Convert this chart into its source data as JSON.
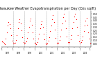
{
  "title": "Milwaukee Weather Evapotranspiration per Day (Ozs sq/ft)",
  "title_fontsize": 3.5,
  "dot_color": "#ff0000",
  "bg_color": "#ffffff",
  "grid_color": "#aaaaaa",
  "ylim": [
    0.0,
    0.55
  ],
  "yticks": [
    0.05,
    0.1,
    0.15,
    0.2,
    0.25,
    0.3,
    0.35,
    0.4,
    0.45,
    0.5
  ],
  "ytick_labels": [
    "0.05",
    "0.10",
    "0.15",
    "0.20",
    "0.25",
    "0.30",
    "0.35",
    "0.40",
    "0.45",
    "0.50"
  ],
  "x_values": [
    0,
    1,
    2,
    3,
    4,
    5,
    6,
    7,
    8,
    9,
    10,
    11,
    12,
    13,
    14,
    15,
    16,
    17,
    18,
    19,
    20,
    21,
    22,
    23,
    24,
    25,
    26,
    27,
    28,
    29,
    30,
    31,
    32,
    33,
    34,
    35,
    36,
    37,
    38,
    39,
    40,
    41,
    42,
    43,
    44,
    45,
    46,
    47,
    48,
    49,
    50,
    51,
    52,
    53,
    54,
    55,
    56,
    57,
    58,
    59,
    60,
    61,
    62,
    63,
    64,
    65,
    66,
    67,
    68,
    69,
    70,
    71,
    72,
    73,
    74,
    75,
    76,
    77,
    78,
    79,
    80,
    81,
    82,
    83,
    84,
    85,
    86,
    87,
    88,
    89,
    90,
    91,
    92,
    93,
    94,
    95
  ],
  "y_values": [
    0.08,
    0.07,
    0.05,
    0.04,
    0.12,
    0.22,
    0.33,
    0.38,
    0.35,
    0.28,
    0.18,
    0.09,
    0.06,
    0.05,
    0.06,
    0.1,
    0.18,
    0.28,
    0.38,
    0.42,
    0.36,
    0.25,
    0.15,
    0.07,
    0.05,
    0.06,
    0.08,
    0.14,
    0.22,
    0.3,
    0.4,
    0.43,
    0.34,
    0.22,
    0.12,
    0.06,
    0.05,
    0.04,
    0.07,
    0.13,
    0.2,
    0.28,
    0.35,
    0.39,
    0.3,
    0.2,
    0.11,
    0.05,
    0.04,
    0.05,
    0.09,
    0.15,
    0.24,
    0.32,
    0.42,
    0.48,
    0.38,
    0.26,
    0.14,
    0.06,
    0.05,
    0.06,
    0.1,
    0.16,
    0.26,
    0.36,
    0.45,
    0.5,
    0.4,
    0.28,
    0.16,
    0.07,
    0.06,
    0.07,
    0.11,
    0.18,
    0.28,
    0.38,
    0.46,
    0.5,
    0.42,
    0.3,
    0.18,
    0.08,
    0.06,
    0.07,
    0.1,
    0.16,
    0.24,
    0.32,
    0.4,
    0.44,
    0.34,
    0.22,
    0.12,
    0.05
  ],
  "vline_positions": [
    12,
    24,
    36,
    48,
    60,
    72,
    84
  ],
  "x_tick_positions": [
    0,
    6,
    12,
    18,
    24,
    30,
    36,
    42,
    48,
    54,
    60,
    66,
    72,
    78,
    84,
    90,
    95
  ],
  "x_tick_labels": [
    "1",
    "",
    "1",
    "",
    "1",
    "",
    "1",
    "",
    "1",
    "",
    "1",
    "",
    "1",
    "",
    "1",
    "",
    "1"
  ],
  "year_labels": [
    "1997",
    "1998",
    "1999",
    "2000",
    "2001",
    "2002",
    "2003",
    "2004"
  ],
  "year_positions": [
    6,
    18,
    30,
    42,
    54,
    66,
    78,
    90
  ]
}
